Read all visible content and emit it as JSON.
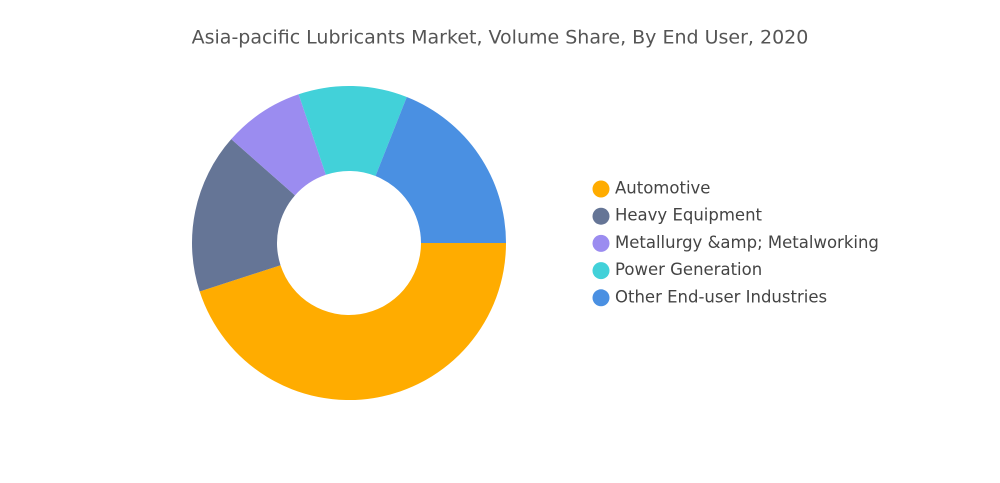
{
  "chart_data": {
    "type": "donut",
    "title": "Asia-pacific Lubricants Market, Volume Share, By End User, 2020",
    "categories": [
      "Automotive",
      "Heavy Equipment",
      "Metallurgy &amp; Metalworking",
      "Power Generation",
      "Other End-user Industries"
    ],
    "values": [
      45,
      16.5,
      8.3,
      11.2,
      19
    ],
    "colors": [
      "#FFAC00",
      "#657596",
      "#9B8CF0",
      "#42D1D9",
      "#4A90E2"
    ]
  }
}
